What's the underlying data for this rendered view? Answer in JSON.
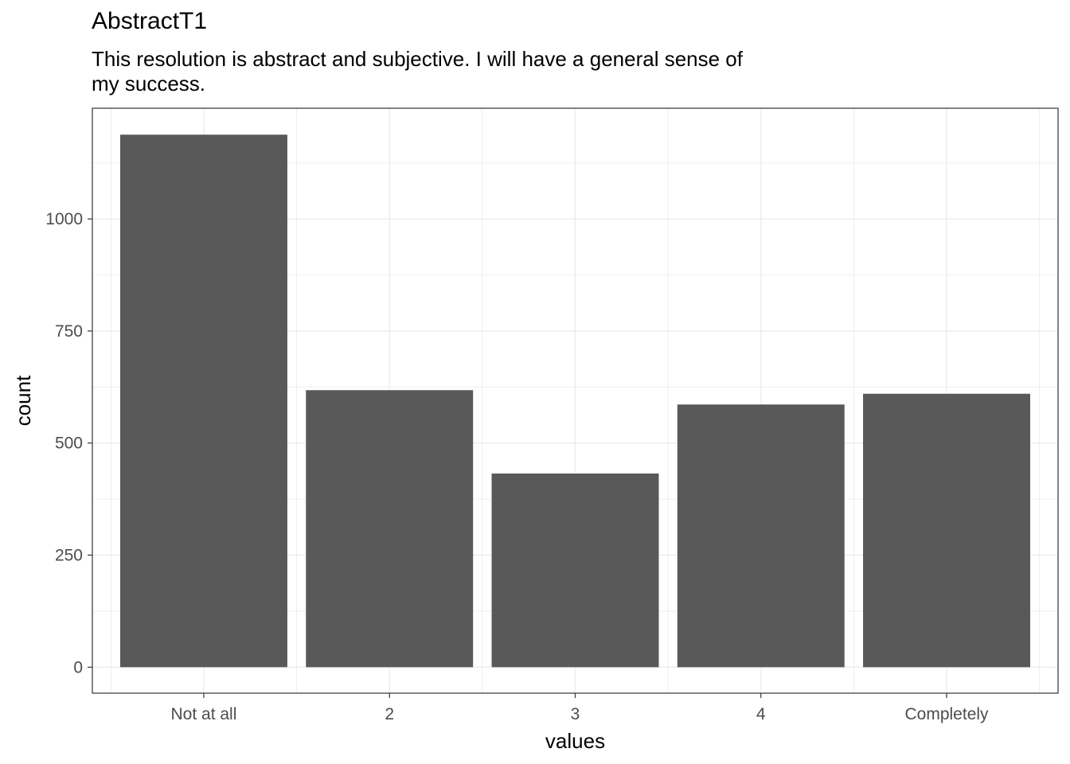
{
  "chart_data": {
    "type": "bar",
    "title": "AbstractT1",
    "subtitle": "This resolution is abstract and subjective. I will have a general sense of my success.",
    "xlabel": "values",
    "ylabel": "count",
    "categories": [
      "Not at all",
      "2",
      "3",
      "4",
      "Completely"
    ],
    "values": [
      1188,
      618,
      432,
      586,
      610
    ],
    "ylim": [
      -58,
      1247
    ],
    "yticks": [
      0,
      250,
      500,
      750,
      1000
    ],
    "bar_color": "#595959",
    "grid": true,
    "theme": "bw"
  }
}
